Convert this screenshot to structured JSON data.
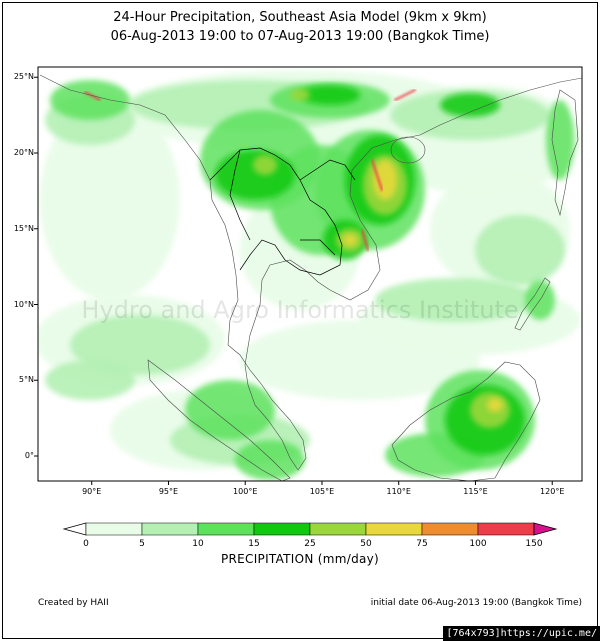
{
  "title_line1": "24-Hour Precipitation, Southeast Asia Model (9km x 9km)",
  "title_line2": "06-Aug-2013 19:00 to 07-Aug-2013 19:00 (Bangkok Time)",
  "lat_labels": [
    "25°N",
    "20°N",
    "15°N",
    "10°N",
    "5°N",
    "0°"
  ],
  "lon_labels": [
    "90°E",
    "95°E",
    "100°E",
    "105°E",
    "110°E",
    "115°E",
    "120°E"
  ],
  "watermark": "Hydro and Agro Informatics Institute",
  "colorbar": {
    "title": "PRECIPITATION (mm/day)",
    "labels": [
      "0",
      "5",
      "10",
      "15",
      "25",
      "50",
      "75",
      "100",
      "150"
    ],
    "colors": [
      "#ffffff",
      "#e8fce8",
      "#b4f0b4",
      "#5ee25e",
      "#10c810",
      "#9ad63c",
      "#e8d83c",
      "#ee8c30",
      "#ee3c48",
      "#d8108c"
    ]
  },
  "credit": "Created by HAII",
  "initial_date": "initial date 06-Aug-2013 19:00 (Bangkok Time)",
  "corner_label": "[764x793]https://upic.me/"
}
